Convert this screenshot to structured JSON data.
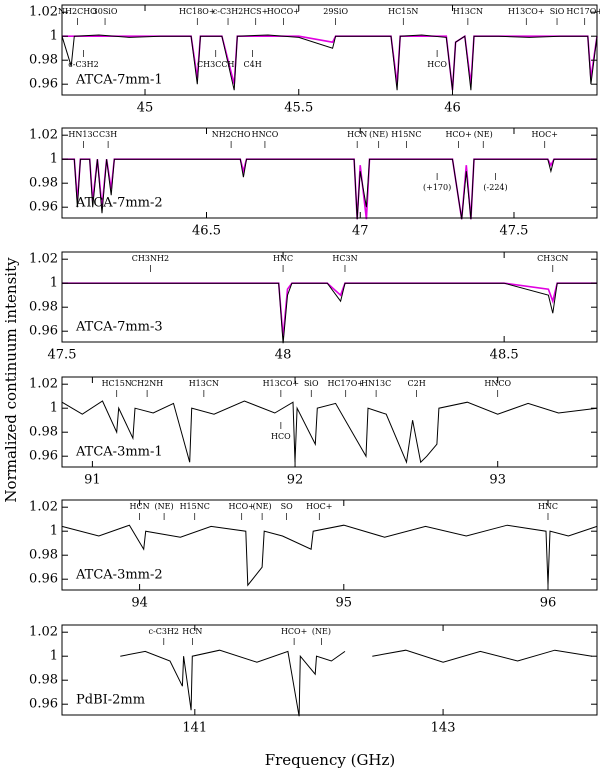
{
  "y_label": "Normalized continuum intensity",
  "x_label": "Frequency (GHz)",
  "chart_data": [
    {
      "type": "line",
      "name": "ATCA-7mm-1",
      "xlim": [
        44.73,
        46.47
      ],
      "xticks": [
        45,
        45.5,
        46
      ],
      "ylim": [
        0.951,
        1.026
      ],
      "yticks": [
        0.96,
        0.98,
        1,
        1.02
      ],
      "x": [
        44.73,
        44.76,
        44.77,
        44.85,
        44.95,
        45.05,
        45.15,
        45.17,
        45.18,
        45.25,
        45.29,
        45.3,
        45.4,
        45.5,
        45.61,
        45.62,
        45.7,
        45.8,
        45.82,
        45.83,
        45.9,
        45.98,
        46.0,
        46.01,
        46.04,
        46.06,
        46.07,
        46.15,
        46.25,
        46.35,
        46.44,
        46.45,
        46.47
      ],
      "series": [
        {
          "color": "#e000e0",
          "values": [
            1,
            1,
            1,
            1,
            1,
            1,
            1,
            0.965,
            1,
            1,
            0.96,
            1,
            1,
            1,
            0.995,
            1,
            1,
            1,
            0.96,
            1,
            1,
            1,
            0.955,
            0.995,
            1,
            0.96,
            1,
            1,
            1,
            1,
            1,
            0.965,
            1
          ]
        },
        {
          "color": "#000000",
          "values": [
            1.0,
            0.975,
            1.0,
            1.001,
            0.999,
            1.0,
            1.0,
            0.96,
            1.0,
            1.0,
            0.955,
            1.0,
            1.001,
            0.999,
            0.99,
            1.0,
            1.0,
            1.0,
            0.955,
            1.0,
            1.001,
            0.999,
            0.955,
            0.995,
            1.0,
            0.955,
            1.0,
            1.0,
            0.999,
            1.0,
            1.0,
            0.96,
            1.0
          ]
        }
      ],
      "labels": [
        {
          "label": "NH2CHO",
          "x": 44.78
        },
        {
          "label": "30SiO",
          "x": 44.87
        },
        {
          "label": "HC18O+",
          "x": 45.17
        },
        {
          "label": "c-C3H2",
          "x": 45.27
        },
        {
          "label": "HCS+",
          "x": 45.36
        },
        {
          "label": "HOCO+",
          "x": 45.45
        },
        {
          "label": "29SiO",
          "x": 45.62
        },
        {
          "label": "HC15N",
          "x": 45.84
        },
        {
          "label": "H13CN",
          "x": 46.05
        },
        {
          "label": "H13CO+",
          "x": 46.24
        },
        {
          "label": "SiO",
          "x": 46.34
        },
        {
          "label": "HC17O+",
          "x": 46.43
        }
      ],
      "lower_labels": [
        {
          "label": "c-C3H2",
          "x": 44.8
        },
        {
          "label": "CH3CCH",
          "x": 45.23
        },
        {
          "label": "C4H",
          "x": 45.35
        },
        {
          "label": "HCO",
          "x": 45.95
        }
      ]
    },
    {
      "type": "line",
      "name": "ATCA-7mm-2",
      "xlim": [
        46.03,
        47.77
      ],
      "xticks": [
        46.5,
        47,
        47.5
      ],
      "ylim": [
        0.951,
        1.026
      ],
      "yticks": [
        0.96,
        0.98,
        1,
        1.02
      ],
      "x": [
        46.03,
        46.07,
        46.08,
        46.09,
        46.12,
        46.13,
        46.145,
        46.16,
        46.175,
        46.19,
        46.2,
        46.3,
        46.45,
        46.61,
        46.62,
        46.63,
        46.8,
        46.98,
        46.99,
        47.0,
        47.02,
        47.03,
        47.15,
        47.3,
        47.33,
        47.345,
        47.36,
        47.37,
        47.5,
        47.61,
        47.62,
        47.63,
        47.77
      ],
      "series": [
        {
          "color": "#e000e0",
          "values": [
            1,
            1,
            0.965,
            1,
            1,
            0.965,
            1,
            0.96,
            1,
            0.975,
            1,
            1,
            1,
            1,
            0.99,
            1,
            1,
            1,
            0.95,
            0.995,
            0.95,
            1,
            1,
            1,
            0.95,
            0.995,
            0.95,
            1,
            1,
            1,
            0.995,
            1,
            1
          ]
        },
        {
          "color": "#000000",
          "values": [
            1,
            1,
            0.96,
            1,
            1,
            0.96,
            1,
            0.955,
            1,
            0.97,
            1,
            1,
            1,
            1,
            0.985,
            1,
            1,
            1,
            0.95,
            0.99,
            0.96,
            1,
            1,
            1,
            0.95,
            0.99,
            0.95,
            1,
            1,
            1,
            0.99,
            1,
            1
          ]
        }
      ],
      "labels": [
        {
          "label": "HN13C",
          "x": 46.1
        },
        {
          "label": "C3H",
          "x": 46.18
        },
        {
          "label": "NH2CHO",
          "x": 46.58
        },
        {
          "label": "HNCO",
          "x": 46.69
        },
        {
          "label": "HCN",
          "x": 46.99
        },
        {
          "label": "(NE)",
          "x": 47.06
        },
        {
          "label": "H15NC",
          "x": 47.15
        },
        {
          "label": "HCO+",
          "x": 47.32
        },
        {
          "label": "(NE)",
          "x": 47.4
        },
        {
          "label": "HOC+",
          "x": 47.6
        }
      ],
      "lower_labels": [
        {
          "label": "(+170)",
          "x": 47.25
        },
        {
          "label": "(-224)",
          "x": 47.44
        }
      ]
    },
    {
      "type": "line",
      "name": "ATCA-7mm-3",
      "xlim": [
        47.5,
        48.71
      ],
      "xticks": [
        47.5,
        48,
        48.5
      ],
      "ylim": [
        0.951,
        1.026
      ],
      "yticks": [
        0.96,
        0.98,
        1,
        1.02
      ],
      "x": [
        47.5,
        47.7,
        47.9,
        47.99,
        48.0,
        48.01,
        48.02,
        48.1,
        48.13,
        48.14,
        48.3,
        48.5,
        48.6,
        48.61,
        48.62,
        48.71
      ],
      "series": [
        {
          "color": "#e000e0",
          "values": [
            1,
            1,
            1,
            1,
            0.955,
            0.995,
            1,
            1,
            0.99,
            1,
            1,
            1,
            0.995,
            0.985,
            1,
            1
          ]
        },
        {
          "color": "#000000",
          "values": [
            1,
            1,
            1,
            1,
            0.95,
            0.99,
            1,
            1,
            0.985,
            1,
            1,
            1,
            0.99,
            0.975,
            1,
            1
          ]
        }
      ],
      "labels": [
        {
          "label": "CH3NH2",
          "x": 47.7
        },
        {
          "label": "HNC",
          "x": 48.0
        },
        {
          "label": "HC3N",
          "x": 48.14
        },
        {
          "label": "CH3CN",
          "x": 48.61
        }
      ],
      "lower_labels": []
    },
    {
      "type": "line",
      "name": "ATCA-3mm-1",
      "xlim": [
        90.85,
        93.49
      ],
      "xticks": [
        91,
        92,
        93
      ],
      "ylim": [
        0.951,
        1.026
      ],
      "yticks": [
        0.96,
        0.98,
        1,
        1.02
      ],
      "x": [
        90.85,
        90.95,
        91.05,
        91.12,
        91.13,
        91.2,
        91.21,
        91.3,
        91.4,
        91.48,
        91.49,
        91.6,
        91.75,
        91.9,
        91.99,
        92.0,
        92.01,
        92.1,
        92.11,
        92.2,
        92.35,
        92.36,
        92.45,
        92.55,
        92.58,
        92.62,
        92.65,
        92.7,
        92.71,
        92.85,
        93.0,
        93.15,
        93.3,
        93.49
      ],
      "series": [
        {
          "color": "#000000",
          "values": [
            1.005,
            0.995,
            1.006,
            0.98,
            1.0,
            0.975,
            1.0,
            0.996,
            1.004,
            0.955,
            1.0,
            0.995,
            1.006,
            0.996,
            1.005,
            0.955,
            1.0,
            0.97,
            1.0,
            1.004,
            0.96,
            1.0,
            0.995,
            0.955,
            0.99,
            0.955,
            0.96,
            0.97,
            1.0,
            1.005,
            0.995,
            1.004,
            0.996,
            1.0
          ]
        }
      ],
      "labels": [
        {
          "label": "HC15N",
          "x": 91.12
        },
        {
          "label": "CH2NH",
          "x": 91.27
        },
        {
          "label": "H13CN",
          "x": 91.55
        },
        {
          "label": "H13CO+",
          "x": 91.93
        },
        {
          "label": "SiO",
          "x": 92.08
        },
        {
          "label": "HC17O+",
          "x": 92.25
        },
        {
          "label": "HN13C",
          "x": 92.4
        },
        {
          "label": "C2H",
          "x": 92.6
        },
        {
          "label": "HNCO",
          "x": 93.0
        }
      ],
      "lower_labels": [
        {
          "label": "HCO",
          "x": 91.93
        }
      ]
    },
    {
      "type": "line",
      "name": "ATCA-3mm-2",
      "xlim": [
        93.62,
        96.24
      ],
      "xticks": [
        94,
        95,
        96
      ],
      "ylim": [
        0.951,
        1.026
      ],
      "yticks": [
        0.96,
        0.98,
        1,
        1.02
      ],
      "x": [
        93.62,
        93.8,
        93.95,
        94.02,
        94.03,
        94.2,
        94.35,
        94.52,
        94.53,
        94.6,
        94.61,
        94.7,
        94.84,
        94.85,
        95.0,
        95.2,
        95.4,
        95.6,
        95.8,
        95.99,
        96.0,
        96.01,
        96.1,
        96.24
      ],
      "series": [
        {
          "color": "#000000",
          "values": [
            1.004,
            0.996,
            1.005,
            0.985,
            1.0,
            0.995,
            1.004,
            1.0,
            0.955,
            0.97,
            1.0,
            0.996,
            0.985,
            1.0,
            1.005,
            0.995,
            1.004,
            0.996,
            1.005,
            1.0,
            0.955,
            1.0,
            0.996,
            1.004
          ]
        }
      ],
      "labels": [
        {
          "label": "HCN",
          "x": 94.0
        },
        {
          "label": "(NE)",
          "x": 94.12
        },
        {
          "label": "H15NC",
          "x": 94.27
        },
        {
          "label": "HCO+",
          "x": 94.5
        },
        {
          "label": "(NE)",
          "x": 94.6
        },
        {
          "label": "SO",
          "x": 94.72
        },
        {
          "label": "HOC+",
          "x": 94.88
        },
        {
          "label": "HNC",
          "x": 96.0
        }
      ],
      "lower_labels": []
    },
    {
      "type": "line",
      "name": "PdBI-2mm",
      "xlim": [
        139.93,
        144.24
      ],
      "xticks": [
        141,
        143
      ],
      "ylim": [
        0.951,
        1.026
      ],
      "yticks": [
        0.96,
        0.98,
        1,
        1.02
      ],
      "x": [
        140.4,
        140.6,
        140.8,
        140.9,
        140.91,
        140.97,
        140.98,
        141.2,
        141.5,
        141.75,
        141.84,
        141.85,
        141.97,
        141.98,
        142.1,
        142.21,
        142.3,
        142.43,
        142.7,
        143.0,
        143.3,
        143.6,
        143.9,
        144.2
      ],
      "series": [
        {
          "color": "#000000",
          "values": [
            1.0,
            1.004,
            0.996,
            0.975,
            1.0,
            0.955,
            1.0,
            1.005,
            0.995,
            1.004,
            0.95,
            1.0,
            0.985,
            1.0,
            0.996,
            1.004,
            null,
            1.0,
            1.005,
            0.995,
            1.004,
            0.996,
            1.005,
            1.0
          ]
        }
      ],
      "labels": [
        {
          "label": "c-C3H2",
          "x": 140.75
        },
        {
          "label": "HCN",
          "x": 140.98
        },
        {
          "label": "HCO+",
          "x": 141.8
        },
        {
          "label": "(NE)",
          "x": 142.02
        }
      ],
      "lower_labels": []
    }
  ]
}
